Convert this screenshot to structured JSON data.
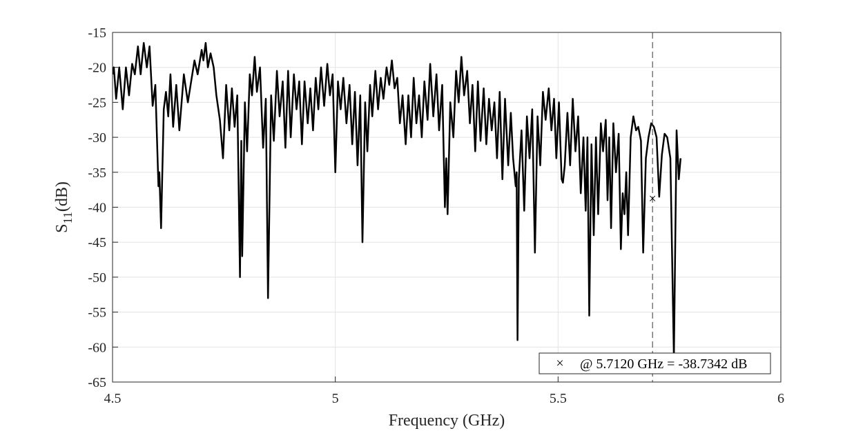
{
  "chart_data": {
    "type": "line",
    "title": "",
    "xlabel": "Frequency (GHz)",
    "ylabel_main": "S",
    "ylabel_sub": "11",
    "ylabel_unit": "(dB)",
    "xlim": [
      4.5,
      6.0
    ],
    "ylim": [
      -65,
      -15
    ],
    "xticks": [
      4.5,
      5.0,
      5.5,
      6.0
    ],
    "xtick_labels": [
      "4.5",
      "5",
      "5.5",
      "6"
    ],
    "yticks": [
      -65,
      -60,
      -55,
      -50,
      -45,
      -40,
      -35,
      -30,
      -25,
      -20,
      -15
    ],
    "ytick_labels": [
      "-65",
      "-60",
      "-55",
      "-50",
      "-45",
      "-40",
      "-35",
      "-30",
      "-25",
      "-20",
      "-15"
    ],
    "grid": true,
    "line_color": "#000000",
    "series": [
      {
        "points": [
          [
            4.5,
            -21
          ],
          [
            4.503,
            -20
          ],
          [
            4.508,
            -24.5
          ],
          [
            4.515,
            -20
          ],
          [
            4.523,
            -26
          ],
          [
            4.53,
            -20
          ],
          [
            4.537,
            -24
          ],
          [
            4.544,
            -19.5
          ],
          [
            4.55,
            -21
          ],
          [
            4.557,
            -17
          ],
          [
            4.563,
            -21
          ],
          [
            4.57,
            -16.5
          ],
          [
            4.577,
            -20
          ],
          [
            4.583,
            -17
          ],
          [
            4.59,
            -25.5
          ],
          [
            4.596,
            -22.5
          ],
          [
            4.603,
            -37
          ],
          [
            4.605,
            -35
          ],
          [
            4.609,
            -43
          ],
          [
            4.615,
            -26
          ],
          [
            4.62,
            -23.5
          ],
          [
            4.625,
            -27
          ],
          [
            4.63,
            -21
          ],
          [
            4.636,
            -28.5
          ],
          [
            4.643,
            -22.5
          ],
          [
            4.65,
            -29
          ],
          [
            4.66,
            -21
          ],
          [
            4.669,
            -25
          ],
          [
            4.684,
            -19
          ],
          [
            4.691,
            -21
          ],
          [
            4.7,
            -17.5
          ],
          [
            4.704,
            -19
          ],
          [
            4.709,
            -16.5
          ],
          [
            4.714,
            -20
          ],
          [
            4.72,
            -18
          ],
          [
            4.727,
            -20
          ],
          [
            4.733,
            -24
          ],
          [
            4.741,
            -27.5
          ],
          [
            4.748,
            -33
          ],
          [
            4.755,
            -22.5
          ],
          [
            4.762,
            -29
          ],
          [
            4.768,
            -23
          ],
          [
            4.774,
            -28.5
          ],
          [
            4.78,
            -24
          ],
          [
            4.786,
            -50
          ],
          [
            4.789,
            -30.5
          ],
          [
            4.791,
            -47
          ],
          [
            4.797,
            -25
          ],
          [
            4.802,
            -32
          ],
          [
            4.808,
            -21
          ],
          [
            4.813,
            -24
          ],
          [
            4.819,
            -18.5
          ],
          [
            4.824,
            -23.5
          ],
          [
            4.831,
            -20
          ],
          [
            4.838,
            -31.5
          ],
          [
            4.844,
            -24.5
          ],
          [
            4.849,
            -53
          ],
          [
            4.856,
            -24
          ],
          [
            4.862,
            -30.5
          ],
          [
            4.869,
            -20.5
          ],
          [
            4.875,
            -27
          ],
          [
            4.882,
            -22
          ],
          [
            4.888,
            -31.5
          ],
          [
            4.894,
            -20.5
          ],
          [
            4.9,
            -30
          ],
          [
            4.907,
            -21
          ],
          [
            4.913,
            -26
          ],
          [
            4.919,
            -22
          ],
          [
            4.925,
            -31
          ],
          [
            4.931,
            -22
          ],
          [
            4.938,
            -28
          ],
          [
            4.944,
            -23
          ],
          [
            4.95,
            -29
          ],
          [
            4.956,
            -21.5
          ],
          [
            4.962,
            -26
          ],
          [
            4.968,
            -20
          ],
          [
            4.975,
            -25.5
          ],
          [
            4.982,
            -19.5
          ],
          [
            4.988,
            -24
          ],
          [
            4.994,
            -21
          ],
          [
            5.0,
            -35
          ],
          [
            5.006,
            -22
          ],
          [
            5.012,
            -26
          ],
          [
            5.018,
            -21.5
          ],
          [
            5.025,
            -28
          ],
          [
            5.032,
            -22.5
          ],
          [
            5.038,
            -31
          ],
          [
            5.044,
            -23.5
          ],
          [
            5.05,
            -34
          ],
          [
            5.056,
            -24
          ],
          [
            5.061,
            -45
          ],
          [
            5.067,
            -25
          ],
          [
            5.072,
            -32
          ],
          [
            5.078,
            -22.5
          ],
          [
            5.083,
            -27
          ],
          [
            5.09,
            -20.5
          ],
          [
            5.096,
            -26
          ],
          [
            5.102,
            -21.5
          ],
          [
            5.108,
            -24.5
          ],
          [
            5.115,
            -20
          ],
          [
            5.121,
            -22.5
          ],
          [
            5.127,
            -19
          ],
          [
            5.133,
            -23
          ],
          [
            5.139,
            -21.5
          ],
          [
            5.145,
            -28
          ],
          [
            5.151,
            -24
          ],
          [
            5.158,
            -31
          ],
          [
            5.164,
            -24
          ],
          [
            5.17,
            -30
          ],
          [
            5.176,
            -21.5
          ],
          [
            5.182,
            -28
          ],
          [
            5.188,
            -24
          ],
          [
            5.194,
            -30
          ],
          [
            5.2,
            -22
          ],
          [
            5.207,
            -27.5
          ],
          [
            5.213,
            -19.5
          ],
          [
            5.22,
            -27
          ],
          [
            5.227,
            -21
          ],
          [
            5.233,
            -29
          ],
          [
            5.24,
            -22.5
          ],
          [
            5.246,
            -40
          ],
          [
            5.249,
            -33
          ],
          [
            5.252,
            -41
          ],
          [
            5.258,
            -25
          ],
          [
            5.265,
            -30
          ],
          [
            5.271,
            -20.5
          ],
          [
            5.277,
            -25
          ],
          [
            5.283,
            -18.5
          ],
          [
            5.289,
            -24
          ],
          [
            5.296,
            -20.5
          ],
          [
            5.302,
            -28
          ],
          [
            5.308,
            -22.5
          ],
          [
            5.314,
            -32
          ],
          [
            5.32,
            -22
          ],
          [
            5.326,
            -30.5
          ],
          [
            5.333,
            -23
          ],
          [
            5.339,
            -31
          ],
          [
            5.345,
            -24.5
          ],
          [
            5.351,
            -29
          ],
          [
            5.357,
            -25
          ],
          [
            5.363,
            -33
          ],
          [
            5.369,
            -23.5
          ],
          [
            5.375,
            -36
          ],
          [
            5.381,
            -24.5
          ],
          [
            5.388,
            -34
          ],
          [
            5.394,
            -26.5
          ],
          [
            5.399,
            -33
          ],
          [
            5.405,
            -37
          ],
          [
            5.407,
            -35
          ],
          [
            5.409,
            -59
          ],
          [
            5.412,
            -36
          ],
          [
            5.418,
            -29
          ],
          [
            5.424,
            -40.5
          ],
          [
            5.43,
            -27
          ],
          [
            5.436,
            -33
          ],
          [
            5.442,
            -26
          ],
          [
            5.448,
            -46.5
          ],
          [
            5.454,
            -27
          ],
          [
            5.46,
            -34
          ],
          [
            5.466,
            -23.5
          ],
          [
            5.472,
            -27.5
          ],
          [
            5.479,
            -23
          ],
          [
            5.485,
            -29
          ],
          [
            5.491,
            -24.5
          ],
          [
            5.496,
            -33
          ],
          [
            5.502,
            -25
          ],
          [
            5.508,
            -36
          ],
          [
            5.511,
            -36.5
          ],
          [
            5.515,
            -34
          ],
          [
            5.521,
            -26.5
          ],
          [
            5.527,
            -34
          ],
          [
            5.533,
            -24.5
          ],
          [
            5.539,
            -32
          ],
          [
            5.545,
            -27
          ],
          [
            5.551,
            -38
          ],
          [
            5.557,
            -30
          ],
          [
            5.562,
            -40.5
          ],
          [
            5.566,
            -30
          ],
          [
            5.57,
            -55.5
          ],
          [
            5.575,
            -31
          ],
          [
            5.58,
            -44
          ],
          [
            5.585,
            -30
          ],
          [
            5.59,
            -41
          ],
          [
            5.596,
            -28
          ],
          [
            5.601,
            -32
          ],
          [
            5.607,
            -27.5
          ],
          [
            5.611,
            -39
          ],
          [
            5.615,
            -30
          ],
          [
            5.619,
            -43
          ],
          [
            5.624,
            -28
          ],
          [
            5.63,
            -35
          ],
          [
            5.636,
            -29.5
          ],
          [
            5.641,
            -46
          ],
          [
            5.645,
            -38
          ],
          [
            5.649,
            -41
          ],
          [
            5.653,
            -35
          ],
          [
            5.657,
            -44
          ],
          [
            5.663,
            -30
          ],
          [
            5.669,
            -27
          ],
          [
            5.675,
            -29
          ],
          [
            5.68,
            -28.5
          ],
          [
            5.686,
            -30.5
          ],
          [
            5.691,
            -46.5
          ],
          [
            5.697,
            -33
          ],
          [
            5.703,
            -30
          ],
          [
            5.709,
            -28
          ],
          [
            5.715,
            -28.5
          ],
          [
            5.721,
            -30
          ],
          [
            5.727,
            -38.5
          ],
          [
            5.733,
            -32.5
          ],
          [
            5.739,
            -29.5
          ],
          [
            5.745,
            -30
          ],
          [
            5.752,
            -33
          ],
          [
            5.76,
            -61.5
          ],
          [
            5.766,
            -29
          ],
          [
            5.771,
            -36
          ],
          [
            5.775,
            -33
          ]
        ]
      }
    ],
    "marker": {
      "symbol": "×",
      "x": 5.712,
      "y": -38.7342,
      "guide": "vertical dashed line"
    },
    "legend": {
      "symbol": "×",
      "text": "@ 5.7120 GHz = -38.7342 dB",
      "placement": "bottom-right"
    }
  }
}
